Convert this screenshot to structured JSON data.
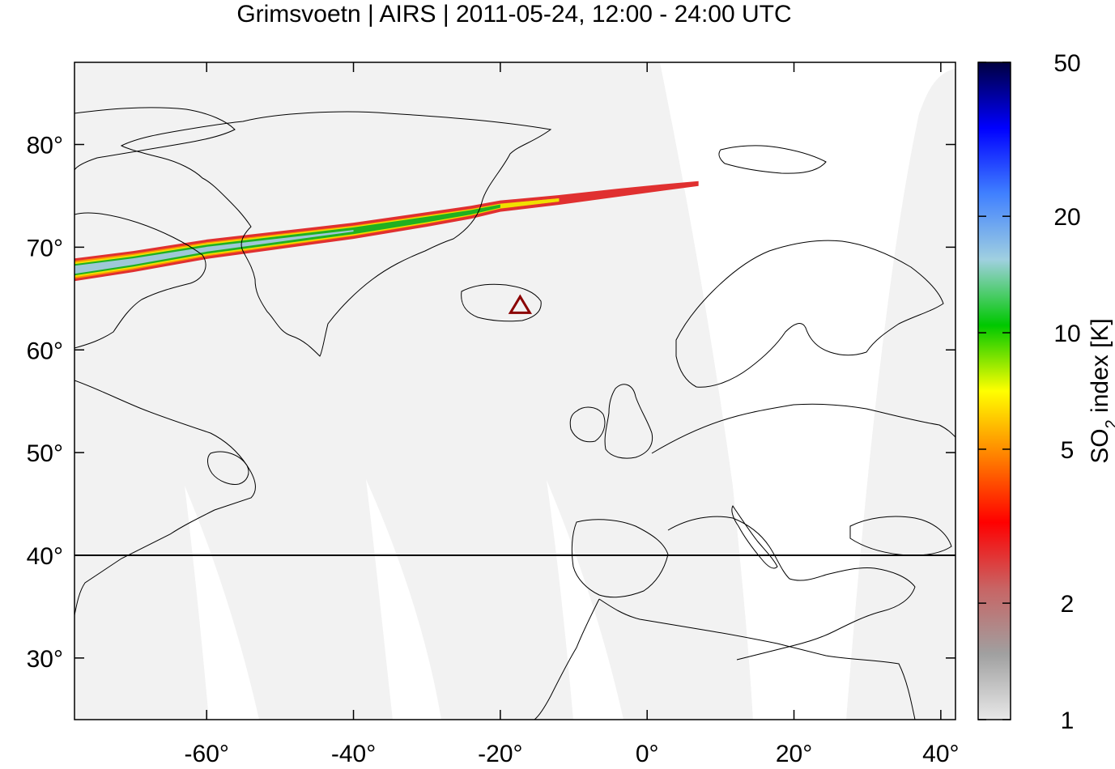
{
  "title": "Grimsvoetn | AIRS | 2011-05-24, 12:00 - 24:00 UTC",
  "map": {
    "lon_range": [
      -78,
      42
    ],
    "lat_range": [
      24,
      88
    ],
    "lon_ticks": [
      -60,
      -40,
      -20,
      0,
      20,
      40
    ],
    "lat_ticks": [
      30,
      40,
      50,
      60,
      70,
      80
    ],
    "lon_tick_labels": [
      "-60°",
      "-40°",
      "-20°",
      "0°",
      "20°",
      "40°"
    ],
    "lat_tick_labels": [
      "30°",
      "40°",
      "50°",
      "60°",
      "70°",
      "80°"
    ],
    "reference_latitude_line": 40,
    "volcano": {
      "name_marker": "triangle",
      "lon": -17.3,
      "lat": 64.4,
      "color": "#8b0000"
    },
    "swath_fill_color": "#f2f2f2",
    "plume_center": [
      [
        -78,
        67.8
      ],
      [
        -70,
        68.6
      ],
      [
        -60,
        69.8
      ],
      [
        -50,
        70.7
      ],
      [
        -40,
        71.6
      ],
      [
        -30,
        72.7
      ],
      [
        -24,
        73.4
      ],
      [
        -20,
        74.0
      ],
      [
        -12,
        74.6
      ],
      [
        -4,
        75.3
      ],
      [
        2,
        75.8
      ],
      [
        7,
        76.2
      ]
    ]
  },
  "colorbar": {
    "label_text": "SO",
    "label_sub": "2",
    "label_rest": " index [K]",
    "scale": "log",
    "range": [
      1,
      50
    ],
    "ticks": [
      1,
      2,
      5,
      10,
      20,
      50
    ],
    "tick_labels": [
      "1",
      "2",
      "5",
      "10",
      "20",
      "50"
    ],
    "colors": [
      "#e8e8e8",
      "#a0a0a0",
      "#c86464",
      "#ff0000",
      "#ff8000",
      "#ffff00",
      "#00c800",
      "#a0d0e0",
      "#4080ff",
      "#0000ff",
      "#000040"
    ]
  }
}
